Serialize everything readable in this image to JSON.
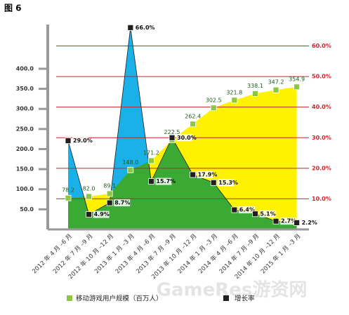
{
  "chart_data": {
    "type": "area-line",
    "title": "图 6",
    "categories": [
      "2012 年 4 月 –6 月",
      "2012 年 7 月 –9 月",
      "2012 年 10 月 –12 月",
      "2013 年 1 月 –3 月",
      "2013 年 4 月 –6 月",
      "2013 年 7 月 –9 月",
      "2013 年 10 月 –12 月",
      "2014 年 1 月 –3 月",
      "2014 年 4 月 –6 月",
      "2014 年 7 月 –9 月",
      "2014 年 10 月 –12 月",
      "2015 年 1 月 –3 月"
    ],
    "series": [
      {
        "name": "移动游戏用户规模（百万人）",
        "color": "#8dc63f",
        "area_color": "#fff200",
        "values": [
          78.2,
          82.0,
          89.1,
          148.0,
          171.2,
          222.5,
          262.4,
          302.5,
          321.8,
          338.1,
          347.2,
          354.9
        ],
        "value_labels": [
          "78.2",
          "82.0",
          "89.1",
          "148.0",
          "171.2",
          "222.5",
          "262.4",
          "302.5",
          "321.8",
          "338.1",
          "347.2",
          "354.9"
        ]
      },
      {
        "name": "增长率",
        "color": "#231f20",
        "area_color": "#1ab0e8",
        "axis": "y2",
        "values": [
          29.0,
          4.9,
          8.7,
          66.0,
          15.7,
          30.0,
          17.9,
          15.3,
          6.4,
          5.1,
          2.7,
          2.2
        ],
        "value_labels": [
          "29.0%",
          "4.9%",
          "8.7%",
          "66.0%",
          "15.7%",
          "30.0%",
          "17.9%",
          "15.3%",
          "6.4%",
          "5.1%",
          "2.7%",
          "2.2%"
        ]
      }
    ],
    "overlap_color": "#3aaa35",
    "ylim": [
      0,
      510
    ],
    "yticks": [
      {
        "value": 50,
        "label": "50.0"
      },
      {
        "value": 100,
        "label": "100.0"
      },
      {
        "value": 150,
        "label": "150.0"
      },
      {
        "value": 200,
        "label": "200.0"
      },
      {
        "value": 250,
        "label": "250.0"
      },
      {
        "value": 300,
        "label": "300.0"
      },
      {
        "value": 350,
        "label": "350.0"
      },
      {
        "value": 400,
        "label": "400.0"
      }
    ],
    "y2lim": [
      0,
      67
    ],
    "y2ticks": [
      {
        "value": 10,
        "label": "10.0%"
      },
      {
        "value": 20,
        "label": "20.0%"
      },
      {
        "value": 30,
        "label": "30.0%"
      },
      {
        "value": 40,
        "label": "40.0%"
      },
      {
        "value": 50,
        "label": "50.0%"
      },
      {
        "value": 60,
        "label": "60.0%"
      }
    ],
    "grid": true,
    "grid_color": "#c1272d",
    "watermark": "GameRes游资网"
  }
}
